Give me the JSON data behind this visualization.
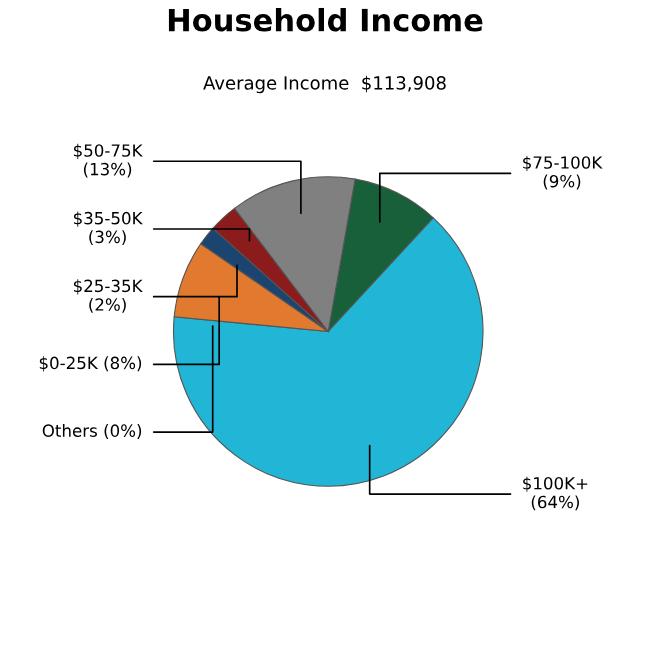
{
  "chart_data": {
    "type": "pie",
    "title": "Household Income",
    "subtitle": "Average Income  $113,908",
    "categories": [
      "$75-100K\n(9%)",
      "$100K+\n(64%)",
      "Others (0%)",
      "$0-25K (8%)",
      "$25-35K\n(2%)",
      "$35-50K\n(3%)",
      "$50-75K\n(13%)"
    ],
    "values": [
      9,
      64,
      0,
      8,
      2,
      3,
      13
    ],
    "colors": [
      "#17603a",
      "#22b6d6",
      "#22b6d6",
      "#e17a2e",
      "#1b4470",
      "#8c1c1c",
      "#808080"
    ]
  }
}
